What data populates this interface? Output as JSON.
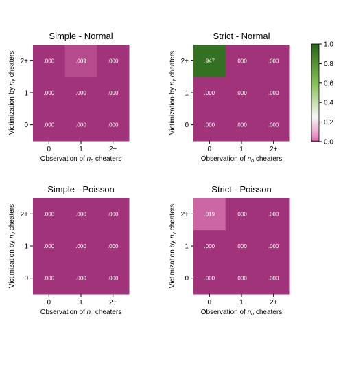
{
  "chart_data": [
    {
      "type": "heatmap",
      "title": "Simple - Normal",
      "xlabel_prefix": "Observation of ",
      "xlabel_var": "n",
      "xlabel_sub": "o",
      "xlabel_suffix": " cheaters",
      "ylabel_prefix": "Victimization by ",
      "ylabel_var": "n",
      "ylabel_sub": "v",
      "ylabel_suffix": " cheaters",
      "x_categories": [
        "0",
        "1",
        "2+"
      ],
      "y_categories": [
        "0",
        "1",
        "2+"
      ],
      "values": [
        [
          0.0,
          0.0,
          0.0
        ],
        [
          0.0,
          0.0,
          0.0
        ],
        [
          0.0,
          0.009,
          0.0
        ]
      ],
      "labels": [
        [
          ".000",
          ".000",
          ".000"
        ],
        [
          ".000",
          ".000",
          ".000"
        ],
        [
          ".000",
          ".009",
          ".000"
        ]
      ]
    },
    {
      "type": "heatmap",
      "title": "Strict - Normal",
      "xlabel_prefix": "Observation of ",
      "xlabel_var": "n",
      "xlabel_sub": "o",
      "xlabel_suffix": " cheaters",
      "ylabel_prefix": "Victimization by ",
      "ylabel_var": "n",
      "ylabel_sub": "v",
      "ylabel_suffix": " cheaters",
      "x_categories": [
        "0",
        "1",
        "2+"
      ],
      "y_categories": [
        "0",
        "1",
        "2+"
      ],
      "values": [
        [
          0.0,
          0.0,
          0.0
        ],
        [
          0.0,
          0.0,
          0.0
        ],
        [
          0.947,
          0.0,
          0.0
        ]
      ],
      "labels": [
        [
          ".000",
          ".000",
          ".000"
        ],
        [
          ".000",
          ".000",
          ".000"
        ],
        [
          ".947",
          ".000",
          ".000"
        ]
      ]
    },
    {
      "type": "heatmap",
      "title": "Simple - Poisson",
      "xlabel_prefix": "Observation of ",
      "xlabel_var": "n",
      "xlabel_sub": "o",
      "xlabel_suffix": " cheaters",
      "ylabel_prefix": "Victimization by ",
      "ylabel_var": "n",
      "ylabel_sub": "v",
      "ylabel_suffix": " cheaters",
      "x_categories": [
        "0",
        "1",
        "2+"
      ],
      "y_categories": [
        "0",
        "1",
        "2+"
      ],
      "values": [
        [
          0.0,
          0.0,
          0.0
        ],
        [
          0.0,
          0.0,
          0.0
        ],
        [
          0.0,
          0.0,
          0.0
        ]
      ],
      "labels": [
        [
          ".000",
          ".000",
          ".000"
        ],
        [
          ".000",
          ".000",
          ".000"
        ],
        [
          ".000",
          ".000",
          ".000"
        ]
      ]
    },
    {
      "type": "heatmap",
      "title": "Strict - Poisson",
      "xlabel_prefix": "Observation of ",
      "xlabel_var": "n",
      "xlabel_sub": "o",
      "xlabel_suffix": " cheaters",
      "ylabel_prefix": "Victimization by ",
      "ylabel_var": "n",
      "ylabel_sub": "v",
      "ylabel_suffix": " cheaters",
      "x_categories": [
        "0",
        "1",
        "2+"
      ],
      "y_categories": [
        "0",
        "1",
        "2+"
      ],
      "values": [
        [
          0.0,
          0.0,
          0.0
        ],
        [
          0.0,
          0.0,
          0.0
        ],
        [
          0.019,
          0.0,
          0.0
        ]
      ],
      "labels": [
        [
          ".000",
          ".000",
          ".000"
        ],
        [
          ".000",
          ".000",
          ".000"
        ],
        [
          ".019",
          ".000",
          ".000"
        ]
      ]
    }
  ],
  "colorbar": {
    "range": [
      0.0,
      1.0
    ],
    "ticks": [
      "0.0",
      "0.2",
      "0.4",
      "0.6",
      "0.8",
      "1.0"
    ],
    "tick_values": [
      0.0,
      0.2,
      0.4,
      0.6,
      0.8,
      1.0
    ],
    "colormap": "PiYG",
    "colors": {
      "low": "#a03379",
      "low_mid": "#e584bd",
      "mid": "#f7f7f7",
      "high_mid": "#86bf55",
      "high": "#276419"
    }
  }
}
